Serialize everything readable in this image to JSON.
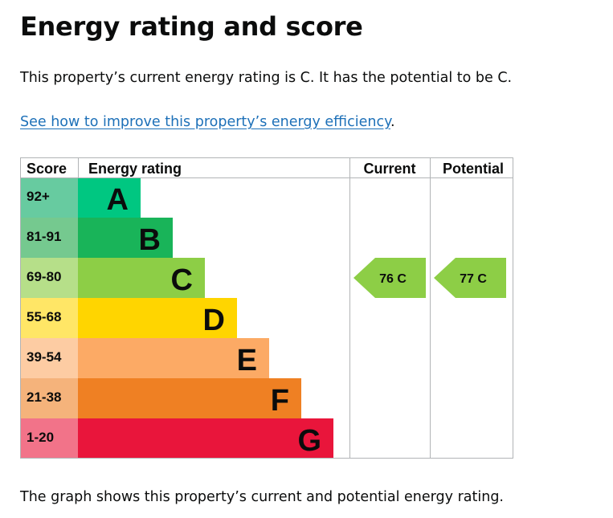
{
  "page": {
    "title": "Energy rating and score",
    "summary": "This property’s current energy rating is C. It has the potential to be C.",
    "link_text": "See how to improve this property’s energy efficiency",
    "link_suffix": ".",
    "footer": "The graph shows this property’s current and potential energy rating."
  },
  "colors": {
    "A": {
      "band": "#00c781",
      "score": "#67cba0"
    },
    "B": {
      "band": "#19b459",
      "score": "#75c98f"
    },
    "C": {
      "band": "#8dce46",
      "score": "#b6df89"
    },
    "D": {
      "band": "#ffd500",
      "score": "#ffe666"
    },
    "E": {
      "band": "#fcaa65",
      "score": "#fdcca3"
    },
    "F": {
      "band": "#ef8023",
      "score": "#f5b37b"
    },
    "G": {
      "band": "#e9153b",
      "score": "#f27389"
    }
  },
  "chart_data": {
    "type": "table",
    "headers": {
      "score": "Score",
      "rating": "Energy rating",
      "current": "Current",
      "potential": "Potential"
    },
    "bands": [
      {
        "letter": "A",
        "range": "92+"
      },
      {
        "letter": "B",
        "range": "81-91"
      },
      {
        "letter": "C",
        "range": "69-80"
      },
      {
        "letter": "D",
        "range": "55-68"
      },
      {
        "letter": "E",
        "range": "39-54"
      },
      {
        "letter": "F",
        "range": "21-38"
      },
      {
        "letter": "G",
        "range": "1-20"
      }
    ],
    "current": {
      "score": 76,
      "band": "C",
      "label": "76 C"
    },
    "potential": {
      "score": 77,
      "band": "C",
      "label": "77 C"
    }
  }
}
